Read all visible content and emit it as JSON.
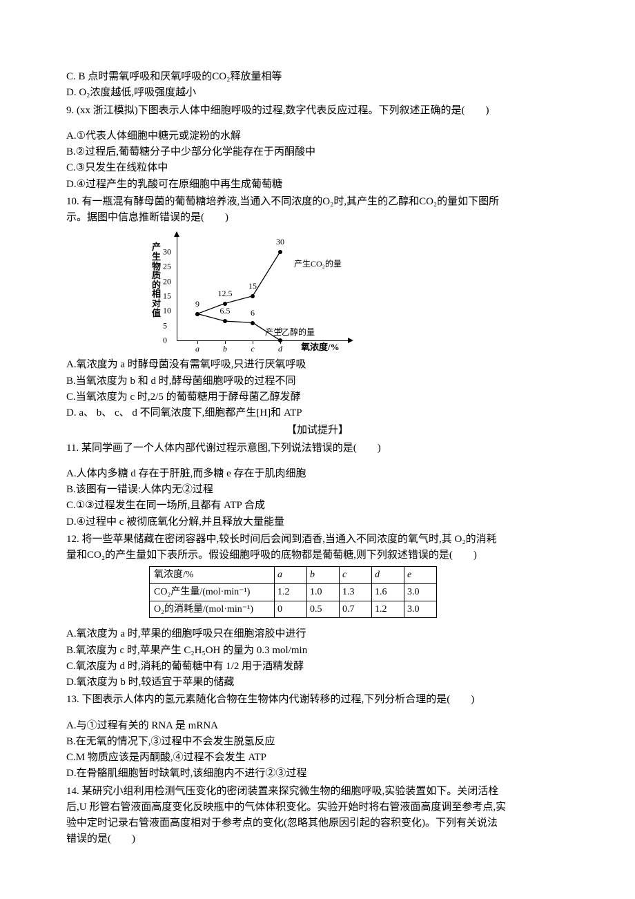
{
  "q8": {
    "optC": "C. B 点时需氧呼吸和厌氧呼吸的CO₂释放量相等",
    "optD": "D. O₂浓度越低,呼吸强度越小"
  },
  "q9": {
    "stem": "9. (xx 浙江模拟)下图表示人体中细胞呼吸的过程,数字代表反应过程。下列叙述正确的是(　　)",
    "optA": "A.①代表人体细胞中糖元或淀粉的水解",
    "optB": "B.②过程后,葡萄糖分子中少部分化学能存在于丙酮酸中",
    "optC": "C.③只发生在线粒体中",
    "optD": "D.④过程产生的乳酸可在原细胞中再生成葡萄糖"
  },
  "q10": {
    "stem1": "10. 有一瓶混有酵母菌的葡萄糖培养液,当通入不同浓度的O₂时,其产生的乙醇和CO₂的量如下图所",
    "stem2": "示。据图中信息推断错误的是(　　)",
    "optA": "A.氧浓度为 a 时酵母菌没有需氧呼吸,只进行厌氧呼吸",
    "optB": "B.当氧浓度为 b 和 d 时,酵母菌细胞呼吸的过程不同",
    "optC": "C.当氧浓度为 c 时,2/5 的葡萄糖用于酵母菌乙醇发酵",
    "optD": "D. a、 b、 c、 d 不同氧浓度下,细胞都产生[H]和 ATP",
    "chart": {
      "ylabel": "产生物质的相对值",
      "xlabel": "氧浓度/%",
      "yticks": [
        0,
        5,
        10,
        15,
        20,
        25,
        30,
        35
      ],
      "ymax": 35,
      "xcats": [
        "a",
        "b",
        "c",
        "d"
      ],
      "series_co2": {
        "label": "产生CO₂的量",
        "points": [
          {
            "x": "a",
            "v": 9,
            "lbl": "9"
          },
          {
            "x": "b",
            "v": 12.5,
            "lbl": "12.5"
          },
          {
            "x": "c",
            "v": 15,
            "lbl": "15"
          },
          {
            "x": "d",
            "v": 30,
            "lbl": "30"
          }
        ]
      },
      "series_eth": {
        "label": "产生乙醇的量",
        "points": [
          {
            "x": "a",
            "v": 9,
            "lbl": ""
          },
          {
            "x": "b",
            "v": 6.5,
            "lbl": "6.5"
          },
          {
            "x": "c",
            "v": 6,
            "lbl": "6"
          },
          {
            "x": "d",
            "v": 0,
            "lbl": "0"
          }
        ]
      },
      "line_color": "#000",
      "background": "#ffffff"
    }
  },
  "section_sub": "【加试提升】",
  "q11": {
    "stem": "11. 某同学画了一个人体内部代谢过程示意图,下列说法错误的是(　　)",
    "optA": "A.人体内多糖 d 存在于肝脏,而多糖 e 存在于肌肉细胞",
    "optB": "B.该图有一错误:人体内无②过程",
    "optC": "C.①③过程发生在同一场所,且都有 ATP 合成",
    "optD": "D.④过程中 c 被彻底氧化分解,并且释放大量能量"
  },
  "q12": {
    "stem1": "12. 将一些苹果储藏在密闭容器中,较长时间后会闻到酒香,当通入不同浓度的氧气时,其 O₂的消耗",
    "stem2": "量和CO₂的产生量如下表所示。假设细胞呼吸的底物都是葡萄糖,则下列叙述错误的是(　　)",
    "table": {
      "headers": [
        "氧浓度/%",
        "a",
        "b",
        "c",
        "d",
        "e"
      ],
      "row_co2_label": "CO₂产生量/(mol·min⁻¹)",
      "row_co2": [
        "1.2",
        "1.0",
        "1.3",
        "1.6",
        "3.0"
      ],
      "row_o2_label": "O₂的消耗量/(mol·min⁻¹)",
      "row_o2": [
        "0",
        "0.5",
        "0.7",
        "1.2",
        "3.0"
      ]
    },
    "optA": "A.氧浓度为 a 时,苹果的细胞呼吸只在细胞溶胶中进行",
    "optB": "B.氧浓度为 c 时,苹果产生 C₂H₅OH 的量为 0.3 mol/min",
    "optC": "C.氧浓度为 d 时,消耗的葡萄糖中有 1/2 用于酒精发酵",
    "optD": "D.氧浓度为 b 时,较适宜于苹果的储藏"
  },
  "q13": {
    "stem": "13. 下图表示人体内的氢元素随化合物在生物体内代谢转移的过程,下列分析合理的是(　　)",
    "optA": "A.与①过程有关的 RNA 是 mRNA",
    "optB": "B.在无氧的情况下,③过程中不会发生脱氢反应",
    "optC": "C.M 物质应该是丙酮酸,④过程不会发生 ATP",
    "optD": "D.在骨骼肌细胞暂时缺氧时,该细胞内不进行②③过程"
  },
  "q14": {
    "stem1": "14. 某研究小组利用检测气压变化的密闭装置来探究微生物的细胞呼吸,实验装置如下。关闭活栓",
    "stem2": "后,U 形管右管液面高度变化反映瓶中的气体体积变化。实验开始时将右管液面高度调至参考点,实",
    "stem3": "验中定时记录右管液面高度相对于参考点的变化(忽略其他原因引起的容积变化)。下列有关说法",
    "stem4": "错误的是(　　)"
  }
}
